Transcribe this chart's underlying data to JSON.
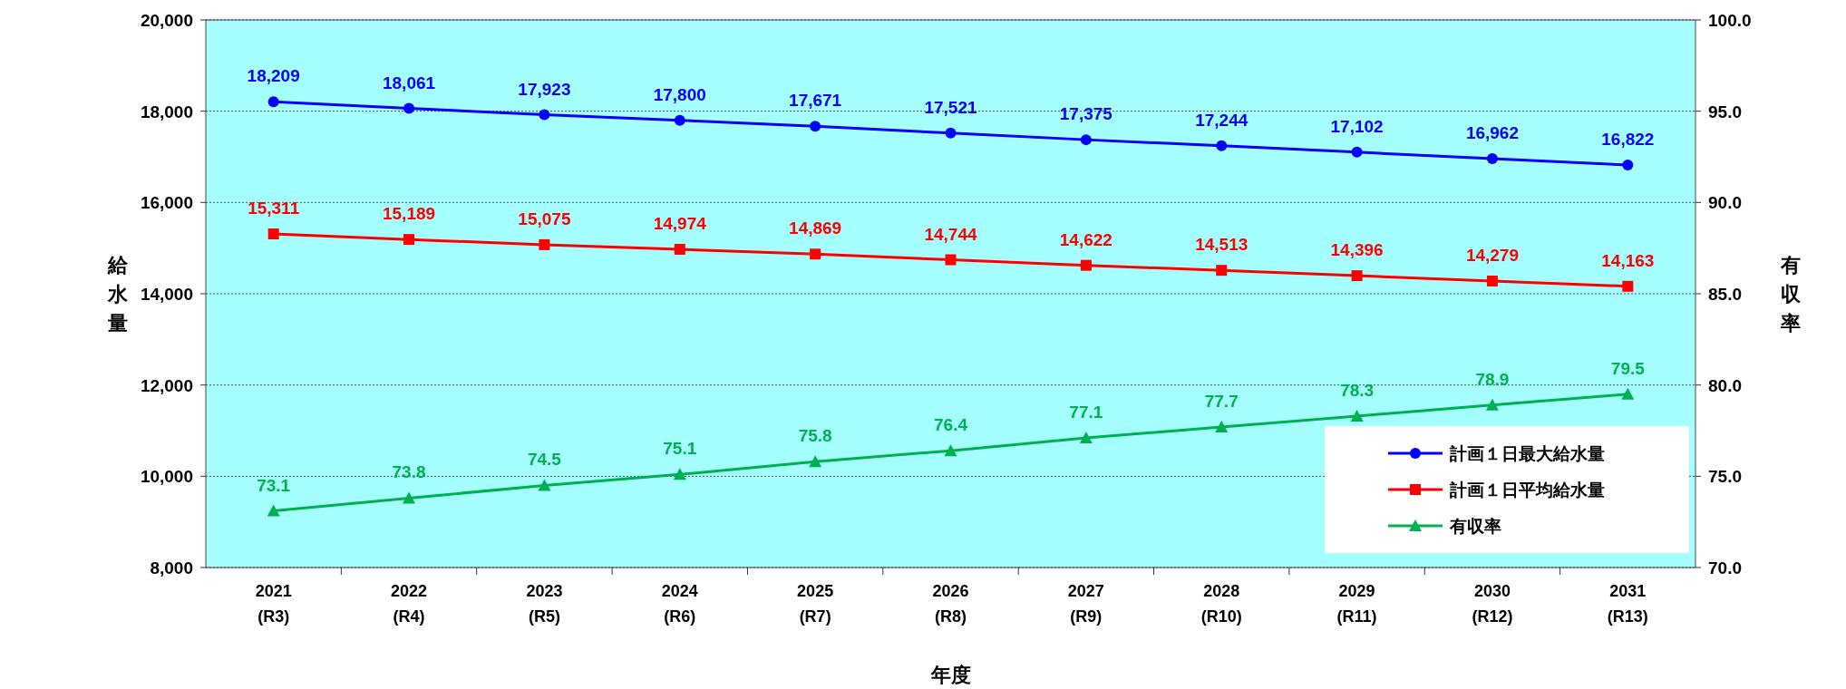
{
  "chart_data": {
    "type": "line",
    "xlabel": "年度",
    "ylabel": "給水量",
    "y2label": "有収率",
    "categories": [
      "2021\n(R3)",
      "2022\n(R4)",
      "2023\n(R5)",
      "2024\n(R6)",
      "2025\n(R7)",
      "2026\n(R8)",
      "2027\n(R9)",
      "2028\n(R10)",
      "2029\n(R11)",
      "2030\n(R12)",
      "2031\n(R13)"
    ],
    "series": [
      {
        "name": "計画１日最大給水量",
        "color": "#0000ff",
        "marker": "circle",
        "values": [
          18209,
          18061,
          17923,
          17800,
          17671,
          17521,
          17375,
          17244,
          17102,
          16962,
          16822
        ],
        "value_labels": [
          "18,209",
          "18,061",
          "17,923",
          "17,800",
          "17,671",
          "17,521",
          "17,375",
          "17,244",
          "17,102",
          "16,962",
          "16,822"
        ]
      },
      {
        "name": "計画１日平均給水量",
        "color": "#ff0000",
        "marker": "square",
        "values": [
          15311,
          15189,
          15075,
          14974,
          14869,
          14744,
          14622,
          14513,
          14396,
          14279,
          14163
        ],
        "value_labels": [
          "15,311",
          "15,189",
          "15,075",
          "14,974",
          "14,869",
          "14,744",
          "14,622",
          "14,513",
          "14,396",
          "14,279",
          "14,163"
        ]
      },
      {
        "name": "有収率",
        "color": "#00b050",
        "marker": "triangle",
        "axis": "y2",
        "values": [
          73.1,
          73.8,
          74.5,
          75.1,
          75.8,
          76.4,
          77.1,
          77.7,
          78.3,
          78.9,
          79.5
        ],
        "value_labels": [
          "73.1",
          "73.8",
          "74.5",
          "75.1",
          "75.8",
          "76.4",
          "77.1",
          "77.7",
          "78.3",
          "78.9",
          "79.5"
        ]
      }
    ],
    "ylim": [
      8000,
      20000
    ],
    "yticks": [
      {
        "value": 8000,
        "label": "8,000"
      },
      {
        "value": 10000,
        "label": "10,000"
      },
      {
        "value": 12000,
        "label": "12,000"
      },
      {
        "value": 14000,
        "label": "14,000"
      },
      {
        "value": 16000,
        "label": "16,000"
      },
      {
        "value": 18000,
        "label": "18,000"
      },
      {
        "value": 20000,
        "label": "20,000"
      }
    ],
    "y2lim": [
      70,
      100
    ],
    "y2ticks": [
      {
        "value": 70,
        "label": "70.0"
      },
      {
        "value": 75,
        "label": "75.0"
      },
      {
        "value": 80,
        "label": "80.0"
      },
      {
        "value": 85,
        "label": "85.0"
      },
      {
        "value": 90,
        "label": "90.0"
      },
      {
        "value": 95,
        "label": "95.0"
      },
      {
        "value": 100,
        "label": "100.0"
      }
    ],
    "grid": "y",
    "legend": "bottom right"
  }
}
